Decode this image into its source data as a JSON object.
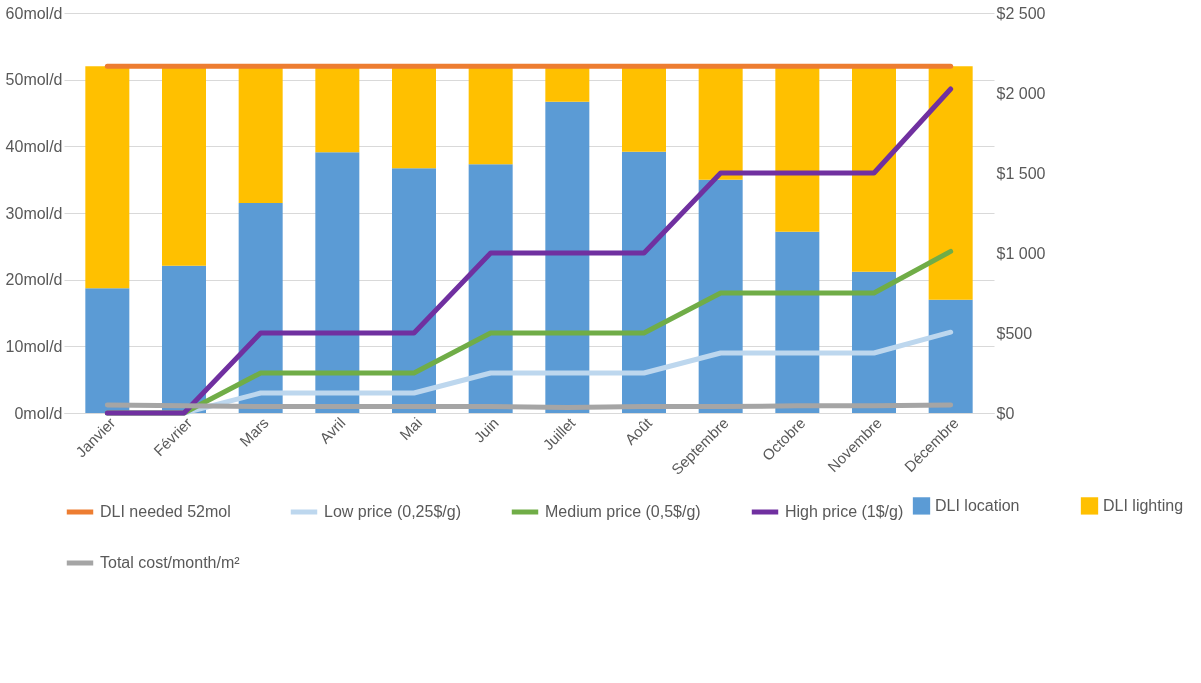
{
  "chart_data": {
    "type": "bar",
    "stacked": true,
    "categories": [
      "Janvier",
      "Février",
      "Mars",
      "Avril",
      "Mai",
      "Juin",
      "Juillet",
      "Août",
      "Septembre",
      "Octobre",
      "Novembre",
      "Décembre"
    ],
    "series": [
      {
        "name": "DLI location",
        "color": "#5b9bd5",
        "values": [
          18.7,
          22.1,
          31.5,
          39.1,
          36.7,
          37.3,
          46.7,
          39.2,
          35.0,
          27.2,
          21.2,
          17.0
        ]
      },
      {
        "name": "DLI lighting",
        "color": "#ffc000",
        "values": [
          33.3,
          29.9,
          20.5,
          12.9,
          15.3,
          14.7,
          5.3,
          12.8,
          17.0,
          24.8,
          30.8,
          35.0
        ]
      },
      {
        "name": "DLI needed 52mol",
        "type": "line",
        "color": "#ed7d31",
        "values": [
          52,
          52,
          52,
          52,
          52,
          52,
          52,
          52,
          52,
          52,
          52,
          52
        ]
      },
      {
        "name": "Low price (0,25$/g)",
        "type": "line",
        "axis": "y2",
        "color": "#bdd7ee",
        "values": [
          0,
          0,
          125,
          125,
          125,
          250,
          250,
          250,
          375,
          375,
          375,
          505
        ]
      },
      {
        "name": "Medium price (0,5$/g)",
        "type": "line",
        "axis": "y2",
        "color": "#70ad47",
        "values": [
          0,
          0,
          250,
          250,
          250,
          500,
          500,
          500,
          750,
          750,
          750,
          1010
        ]
      },
      {
        "name": "High price (1$/g)",
        "type": "line",
        "axis": "y2",
        "color": "#7030a0",
        "values": [
          0,
          0,
          500,
          500,
          500,
          1000,
          1000,
          1000,
          1500,
          1500,
          1500,
          2025
        ]
      },
      {
        "name": "Total cost/month/m²",
        "type": "line",
        "axis": "y2",
        "color": "#a5a5a5",
        "values": [
          50,
          45,
          40,
          40,
          40,
          40,
          35,
          40,
          40,
          45,
          45,
          50
        ]
      }
    ],
    "ylim": [
      0,
      60
    ],
    "yticks": [
      {
        "value": 0,
        "label": "0mol/d"
      },
      {
        "value": 10,
        "label": "10mol/d"
      },
      {
        "value": 20,
        "label": "20mol/d"
      },
      {
        "value": 30,
        "label": "30mol/d"
      },
      {
        "value": 40,
        "label": "40mol/d"
      },
      {
        "value": 50,
        "label": "50mol/d"
      },
      {
        "value": 60,
        "label": "60mol/d"
      }
    ],
    "y2lim": [
      0,
      2500
    ],
    "y2ticks": [
      {
        "value": 0,
        "label": "$0"
      },
      {
        "value": 500,
        "label": "$500"
      },
      {
        "value": 1000,
        "label": "$1 000"
      },
      {
        "value": 1500,
        "label": "$1 500"
      },
      {
        "value": 2000,
        "label": "$2 000"
      },
      {
        "value": 2500,
        "label": "$2 500"
      }
    ],
    "grid": "y",
    "legend": "bottom",
    "marker": "none",
    "line_style": "solid"
  }
}
